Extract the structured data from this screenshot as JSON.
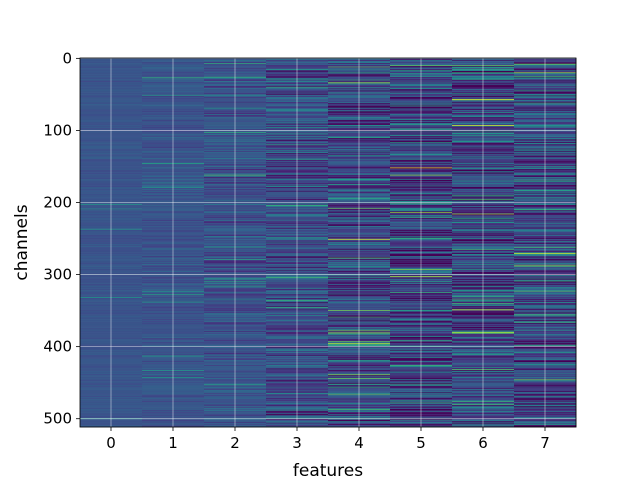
{
  "chart_data": {
    "type": "heatmap",
    "xlabel": "features",
    "ylabel": "channels",
    "x_ticks": [
      "0",
      "1",
      "2",
      "3",
      "4",
      "5",
      "6",
      "7"
    ],
    "y_ticks": [
      "0",
      "100",
      "200",
      "300",
      "400",
      "500"
    ],
    "xlim": [
      -0.5,
      7.5
    ],
    "ylim": [
      511.5,
      -0.5
    ],
    "n_rows": 512,
    "n_cols": 8,
    "colormap": "viridis",
    "grid": true,
    "column_spread": [
      0.02,
      0.04,
      0.07,
      0.11,
      0.15,
      0.17,
      0.16,
      0.15
    ],
    "column_center": [
      0.26,
      0.26,
      0.25,
      0.24,
      0.22,
      0.2,
      0.21,
      0.22
    ],
    "highlights": [
      {
        "col": 0,
        "row": 500,
        "v": 0.55
      },
      {
        "col": 3,
        "row": 120,
        "v": 0.6
      },
      {
        "col": 4,
        "row": 381,
        "v": 0.85
      },
      {
        "col": 4,
        "row": 396,
        "v": 0.95
      },
      {
        "col": 4,
        "row": 457,
        "v": 0.6
      },
      {
        "col": 5,
        "row": 303,
        "v": 0.9
      },
      {
        "col": 5,
        "row": 478,
        "v": 0.65
      },
      {
        "col": 6,
        "row": 20,
        "v": 0.65
      },
      {
        "col": 6,
        "row": 57,
        "v": 0.95
      },
      {
        "col": 6,
        "row": 216,
        "v": 0.85
      },
      {
        "col": 6,
        "row": 432,
        "v": 0.75
      },
      {
        "col": 6,
        "row": 480,
        "v": 0.7
      },
      {
        "col": 7,
        "row": 45,
        "v": 0.6
      },
      {
        "col": 7,
        "row": 210,
        "v": 0.65
      },
      {
        "col": 7,
        "row": 262,
        "v": 0.7
      },
      {
        "col": 7,
        "row": 271,
        "v": 0.95
      },
      {
        "col": 7,
        "row": 398,
        "v": 0.65
      }
    ]
  }
}
